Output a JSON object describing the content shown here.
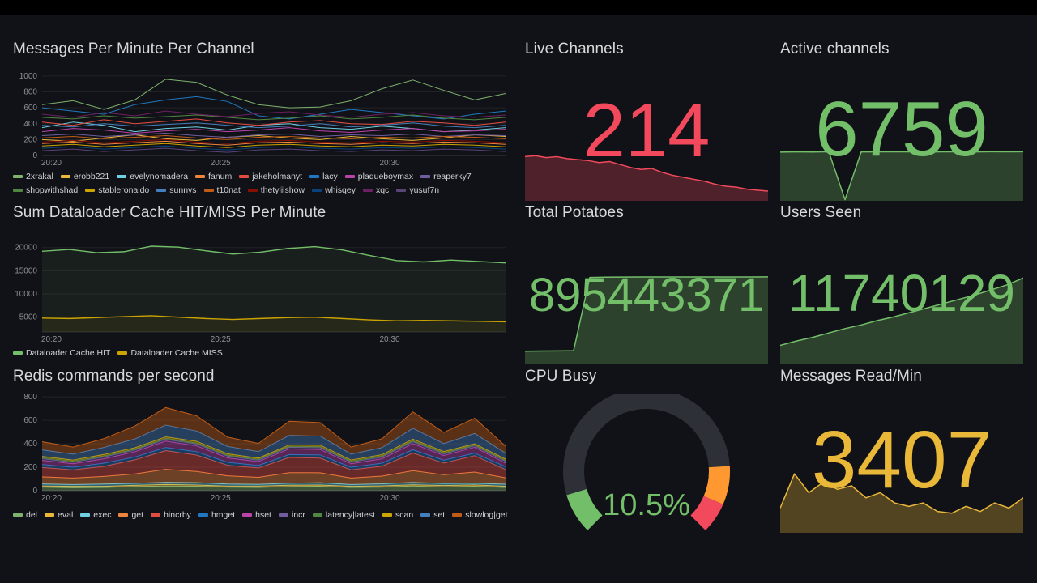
{
  "dashboard": {
    "background": "#111217",
    "top_bar_color": "#000000"
  },
  "panels": {
    "messages_per_minute": {
      "title": "Messages Per Minute Per Channel"
    },
    "dataloader": {
      "title": "Sum Dataloader Cache HIT/MISS Per Minute"
    },
    "redis": {
      "title": "Redis commands per second"
    },
    "live_channels": {
      "title": "Live Channels",
      "value": "214",
      "color": "#F2495C"
    },
    "active_channels": {
      "title": "Active channels",
      "value": "6759",
      "color": "#73BF69"
    },
    "total_potatoes": {
      "title": "Total Potatoes",
      "value": "895443371",
      "color": "#73BF69"
    },
    "users_seen": {
      "title": "Users Seen",
      "value": "11740129",
      "color": "#73BF69"
    },
    "cpu_busy": {
      "title": "CPU Busy",
      "value": "10.5%",
      "color": "#73BF69"
    },
    "messages_read": {
      "title": "Messages Read/Min",
      "value": "3407",
      "color": "#EAB839"
    }
  },
  "chart_data": [
    {
      "type": "line",
      "title": "Messages Per Minute Per Channel",
      "ylim": [
        0,
        1040
      ],
      "yticks": [
        0,
        200,
        400,
        600,
        800,
        1000
      ],
      "lw": 1,
      "xticks": [
        {
          "f": 0.02,
          "label": "20:20"
        },
        {
          "f": 0.385,
          "label": "20:25"
        },
        {
          "f": 0.75,
          "label": "20:30"
        }
      ],
      "series": [
        {
          "name": "2xrakal",
          "color": "#7EB26D",
          "values": [
            640,
            690,
            580,
            700,
            960,
            920,
            760,
            640,
            600,
            610,
            690,
            840,
            950,
            820,
            700,
            780
          ]
        },
        {
          "name": "erobb221",
          "color": "#EAB839",
          "values": [
            200,
            180,
            220,
            260,
            210,
            190,
            230,
            250,
            220,
            200,
            240,
            210,
            190,
            220,
            260,
            240
          ]
        },
        {
          "name": "evelynomadera",
          "color": "#6ED0E0",
          "values": [
            350,
            420,
            380,
            300,
            340,
            360,
            320,
            380,
            400,
            350,
            330,
            370,
            340,
            300,
            320,
            350
          ]
        },
        {
          "name": "fanum",
          "color": "#EF843C",
          "values": [
            150,
            170,
            140,
            160,
            180,
            150,
            130,
            160,
            170,
            150,
            140,
            160,
            150,
            170,
            160,
            140
          ]
        },
        {
          "name": "jakeholmanyt",
          "color": "#E24D42",
          "values": [
            420,
            380,
            450,
            400,
            430,
            460,
            410,
            380,
            420,
            440,
            400,
            390,
            430,
            410,
            380,
            420
          ]
        },
        {
          "name": "lacy",
          "color": "#1F78C1",
          "values": [
            600,
            560,
            520,
            640,
            700,
            740,
            680,
            500,
            460,
            520,
            580,
            540,
            500,
            460,
            520,
            560
          ]
        },
        {
          "name": "plaqueboymax",
          "color": "#BA43A9",
          "values": [
            300,
            340,
            320,
            280,
            310,
            330,
            300,
            320,
            350,
            310,
            290,
            320,
            340,
            300,
            310,
            330
          ]
        },
        {
          "name": "reaperky7",
          "color": "#705DA0",
          "values": [
            250,
            270,
            240,
            260,
            280,
            250,
            230,
            260,
            270,
            240,
            260,
            250,
            270,
            240,
            260,
            250
          ]
        },
        {
          "name": "shopwithshad",
          "color": "#508642",
          "values": [
            480,
            460,
            500,
            470,
            490,
            510,
            480,
            450,
            470,
            500,
            460,
            480,
            510,
            470,
            450,
            480
          ]
        },
        {
          "name": "stableronaldo",
          "color": "#CCA300",
          "values": [
            120,
            140,
            110,
            130,
            150,
            120,
            100,
            130,
            140,
            120,
            110,
            130,
            120,
            140,
            130,
            110
          ]
        },
        {
          "name": "sunnys",
          "color": "#447EBC",
          "values": [
            380,
            360,
            400,
            370,
            390,
            410,
            380,
            350,
            370,
            400,
            360,
            380,
            410,
            370,
            350,
            380
          ]
        },
        {
          "name": "t10nat",
          "color": "#C15C17",
          "values": [
            220,
            240,
            210,
            230,
            250,
            220,
            200,
            230,
            240,
            220,
            210,
            230,
            220,
            240,
            230,
            210
          ]
        },
        {
          "name": "thetylilshow",
          "color": "#890F02",
          "values": [
            170,
            190,
            160,
            180,
            200,
            170,
            150,
            180,
            190,
            170,
            160,
            180,
            170,
            190,
            180,
            160
          ]
        },
        {
          "name": "whisqey",
          "color": "#0A437C",
          "values": [
            90,
            110,
            80,
            100,
            120,
            90,
            70,
            100,
            110,
            90,
            80,
            100,
            90,
            110,
            100,
            80
          ]
        },
        {
          "name": "xqc",
          "color": "#6D1F62",
          "values": [
            520,
            480,
            540,
            500,
            560,
            520,
            490,
            530,
            550,
            510,
            480,
            520,
            540,
            500,
            480,
            510
          ]
        },
        {
          "name": "yusuf7n",
          "color": "#584477",
          "values": [
            60,
            80,
            50,
            70,
            90,
            60,
            40,
            70,
            80,
            60,
            50,
            70,
            60,
            80,
            70,
            50
          ]
        }
      ]
    },
    {
      "type": "line",
      "title": "Sum Dataloader Cache HIT/MISS Per Minute",
      "ylim": [
        1800,
        21000
      ],
      "yticks": [
        5000,
        10000,
        15000,
        20000
      ],
      "lw": 1.4,
      "xticks": [
        {
          "f": 0.02,
          "label": "20:20"
        },
        {
          "f": 0.385,
          "label": "20:25"
        },
        {
          "f": 0.75,
          "label": "20:30"
        }
      ],
      "series": [
        {
          "name": "Dataloader Cache HIT",
          "color": "#73BF69",
          "fill": 0.08,
          "values": [
            19200,
            19600,
            18900,
            19100,
            20300,
            20100,
            19300,
            18600,
            19000,
            19800,
            20200,
            19500,
            18300,
            17200,
            16900,
            17300,
            17000,
            16700
          ]
        },
        {
          "name": "Dataloader Cache MISS",
          "color": "#CCA300",
          "fill": 0.08,
          "values": [
            4800,
            4700,
            4900,
            5100,
            5300,
            5000,
            4700,
            4500,
            4700,
            4900,
            5000,
            4700,
            4400,
            4200,
            4300,
            4200,
            4100,
            4000
          ]
        }
      ]
    },
    {
      "type": "line",
      "stacked": true,
      "title": "Redis commands per second",
      "ylim": [
        0,
        815
      ],
      "yticks": [
        0,
        200,
        400,
        600,
        800
      ],
      "lw": 1,
      "xticks": [
        {
          "f": 0.02,
          "label": "20:20"
        },
        {
          "f": 0.385,
          "label": "20:25"
        },
        {
          "f": 0.75,
          "label": "20:30"
        }
      ],
      "series": [
        {
          "name": "del",
          "color": "#7EB26D",
          "values": [
            30,
            25,
            28,
            35,
            40,
            38,
            30,
            28,
            35,
            38,
            28,
            30,
            40,
            32,
            38,
            28
          ]
        },
        {
          "name": "eval",
          "color": "#EAB839",
          "values": [
            10,
            12,
            9,
            11,
            13,
            10,
            9,
            11,
            12,
            10,
            9,
            11,
            10,
            12,
            11,
            9
          ]
        },
        {
          "name": "exec",
          "color": "#6ED0E0",
          "values": [
            18,
            16,
            20,
            17,
            19,
            21,
            18,
            15,
            17,
            20,
            16,
            18,
            21,
            17,
            15,
            18
          ]
        },
        {
          "name": "get",
          "color": "#EF843C",
          "values": [
            60,
            55,
            65,
            80,
            110,
            95,
            70,
            60,
            90,
            85,
            55,
            65,
            100,
            75,
            95,
            55
          ]
        },
        {
          "name": "hincrby",
          "color": "#E24D42",
          "values": [
            80,
            70,
            85,
            120,
            160,
            140,
            90,
            80,
            130,
            125,
            70,
            85,
            150,
            100,
            140,
            70
          ]
        },
        {
          "name": "hmget",
          "color": "#1F78C1",
          "values": [
            25,
            22,
            27,
            24,
            26,
            28,
            25,
            21,
            24,
            27,
            22,
            25,
            28,
            24,
            21,
            25
          ]
        },
        {
          "name": "hset",
          "color": "#BA43A9",
          "values": [
            35,
            30,
            38,
            45,
            55,
            50,
            38,
            33,
            48,
            46,
            30,
            38,
            52,
            40,
            50,
            30
          ]
        },
        {
          "name": "incr",
          "color": "#705DA0",
          "values": [
            15,
            13,
            16,
            14,
            15,
            17,
            15,
            12,
            14,
            16,
            13,
            15,
            17,
            14,
            12,
            15
          ]
        },
        {
          "name": "latency|latest",
          "color": "#508642",
          "values": [
            8,
            8,
            8,
            8,
            8,
            8,
            8,
            8,
            8,
            8,
            8,
            8,
            8,
            8,
            8,
            8
          ]
        },
        {
          "name": "scan",
          "color": "#CCA300",
          "values": [
            12,
            11,
            13,
            12,
            13,
            14,
            12,
            10,
            12,
            13,
            11,
            12,
            14,
            12,
            10,
            12
          ]
        },
        {
          "name": "set",
          "color": "#447EBC",
          "values": [
            55,
            50,
            60,
            75,
            100,
            88,
            62,
            55,
            82,
            78,
            50,
            60,
            92,
            68,
            88,
            50
          ]
        },
        {
          "name": "slowlog|get",
          "color": "#C15C17",
          "values": [
            70,
            60,
            75,
            110,
            150,
            130,
            80,
            70,
            120,
            115,
            60,
            75,
            140,
            95,
            130,
            60
          ]
        }
      ]
    },
    {
      "type": "sparkline",
      "title": "Live Channels trend",
      "color": "#F2495C",
      "fill_opacity": 0.28,
      "ylim": [
        150,
        242
      ],
      "values": [
        238,
        240,
        236,
        238,
        234,
        232,
        230,
        226,
        228,
        222,
        216,
        212,
        214,
        206,
        200,
        196,
        192,
        188,
        182,
        178,
        176,
        172,
        170,
        168
      ]
    },
    {
      "type": "sparkline",
      "title": "Active channels trend",
      "color": "#73BF69",
      "fill_opacity": 0.28,
      "ylim": [
        0,
        6800
      ],
      "values": [
        6700,
        6740,
        6720,
        6760,
        50,
        6730,
        6750,
        6740,
        6760,
        6720,
        6740,
        6750,
        6730,
        6760,
        6740,
        6759
      ]
    },
    {
      "type": "sparkline",
      "title": "Total Potatoes trend",
      "color": "#73BF69",
      "fill_opacity": 0.28,
      "ylim": [
        0,
        920000000
      ],
      "values": [
        128000000,
        130000000,
        131000000,
        133000000,
        890000000,
        893000000,
        894000000,
        895000000,
        895100000,
        895200000,
        895250000,
        895300000,
        895350000,
        895400000,
        895420000,
        895443371
      ]
    },
    {
      "type": "sparkline",
      "title": "Users Seen trend",
      "color": "#73BF69",
      "fill_opacity": 0.28,
      "ylim": [
        0,
        12000000
      ],
      "values": [
        2500000,
        3100000,
        3600000,
        4200000,
        4800000,
        5300000,
        5900000,
        6400000,
        7000000,
        7600000,
        8200000,
        8800000,
        9400000,
        10100000,
        10800000,
        11740129
      ]
    },
    {
      "type": "gauge",
      "title": "CPU Busy",
      "value": 10.5,
      "min": 0,
      "max": 100,
      "display": "10.5%",
      "color": "#73BF69",
      "track_color": "#2d3036",
      "threshold_bands": [
        {
          "from": 0.82,
          "to": 0.92,
          "color": "#FF9830"
        },
        {
          "from": 0.92,
          "to": 1.0,
          "color": "#F2495C"
        }
      ]
    },
    {
      "type": "sparkline",
      "title": "Messages Read/Min trend",
      "color": "#EAB839",
      "fill_opacity": 0.3,
      "ylim": [
        0,
        3600
      ],
      "values": [
        1400,
        3400,
        2300,
        2900,
        2500,
        2700,
        2000,
        2300,
        1700,
        1500,
        1700,
        1200,
        1100,
        1500,
        1200,
        1700,
        1400,
        2000
      ]
    }
  ]
}
